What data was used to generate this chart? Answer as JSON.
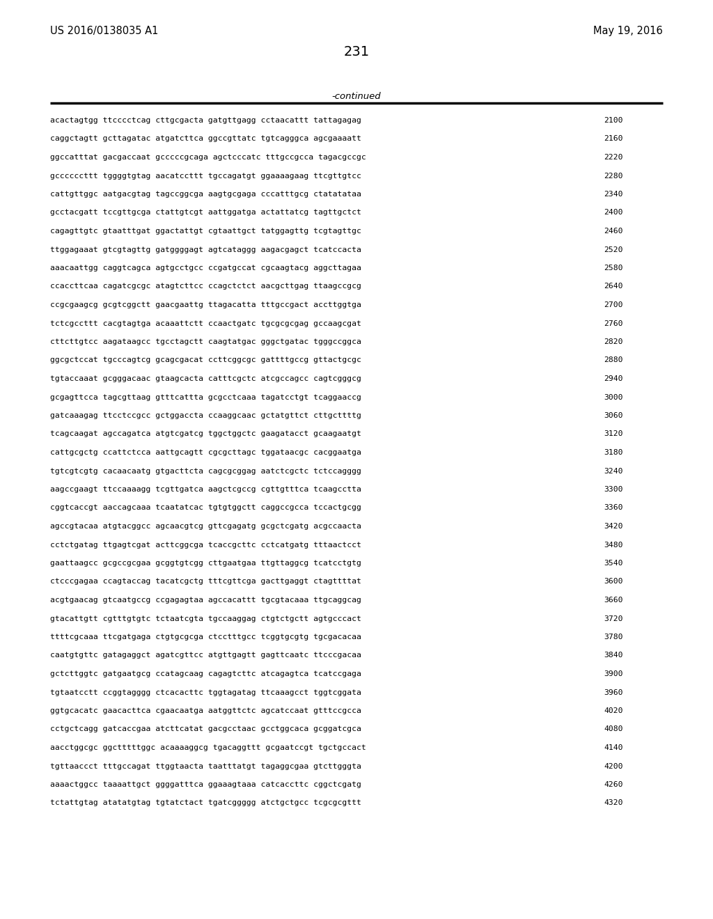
{
  "page_number": "231",
  "patent_number": "US 2016/0138035 A1",
  "patent_date": "May 19, 2016",
  "continued_label": "-continued",
  "background_color": "#ffffff",
  "text_color": "#000000",
  "sequences": [
    [
      "acactagtgg ttcccctcag cttgcgacta gatgttgagg cctaacattt tattagagag",
      "2100"
    ],
    [
      "caggctagtt gcttagatac atgatcttca ggccgttatc tgtcagggca agcgaaaatt",
      "2160"
    ],
    [
      "ggccatttat gacgaccaat gcccccgcaga agctcccatc tttgccgcca tagacgccgc",
      "2220"
    ],
    [
      "gccccccttt tggggtgtag aacatccttt tgccagatgt ggaaaagaag ttcgttgtcc",
      "2280"
    ],
    [
      "cattgttggc aatgacgtag tagccggcga aagtgcgaga cccatttgcg ctatatataa",
      "2340"
    ],
    [
      "gcctacgatt tccgttgcga ctattgtcgt aattggatga actattatcg tagttgctct",
      "2400"
    ],
    [
      "cagagttgtc gtaatttgat ggactattgt cgtaattgct tatggagttg tcgtagttgc",
      "2460"
    ],
    [
      "ttggagaaat gtcgtagttg gatggggagt agtcataggg aagacgagct tcatccacta",
      "2520"
    ],
    [
      "aaacaattgg caggtcagca agtgcctgcc ccgatgccat cgcaagtacg aggcttagaa",
      "2580"
    ],
    [
      "ccaccttcaa cagatcgcgc atagtcttcc ccagctctct aacgcttgag ttaagccgcg",
      "2640"
    ],
    [
      "ccgcgaagcg gcgtcggctt gaacgaattg ttagacatta tttgccgact accttggtga",
      "2700"
    ],
    [
      "tctcgccttt cacgtagtga acaaattctt ccaactgatc tgcgcgcgag gccaagcgat",
      "2760"
    ],
    [
      "cttcttgtcc aagataagcc tgcctagctt caagtatgac gggctgatac tgggccggca",
      "2820"
    ],
    [
      "ggcgctccat tgcccagtcg gcagcgacat ccttcggcgc gattttgccg gttactgcgc",
      "2880"
    ],
    [
      "tgtaccaaat gcgggacaac gtaagcacta catttcgctc atcgccagcc cagtcgggcg",
      "2940"
    ],
    [
      "gcgagttcca tagcgttaag gtttcattta gcgcctcaaa tagatcctgt tcaggaaccg",
      "3000"
    ],
    [
      "gatcaaagag ttcctccgcc gctggaccta ccaaggcaac gctatgttct cttgcttttg",
      "3060"
    ],
    [
      "tcagcaagat agccagatca atgtcgatcg tggctggctc gaagatacct gcaagaatgt",
      "3120"
    ],
    [
      "cattgcgctg ccattctcca aattgcagtt cgcgcttagc tggataacgc cacggaatga",
      "3180"
    ],
    [
      "tgtcgtcgtg cacaacaatg gtgacttcta cagcgcggag aatctcgctc tctccagggg",
      "3240"
    ],
    [
      "aagccgaagt ttccaaaagg tcgttgatca aagctcgccg cgttgtttca tcaagcctta",
      "3300"
    ],
    [
      "cggtcaccgt aaccagcaaa tcaatatcac tgtgtggctt caggccgcca tccactgcgg",
      "3360"
    ],
    [
      "agccgtacaa atgtacggcc agcaacgtcg gttcgagatg gcgctcgatg acgccaacta",
      "3420"
    ],
    [
      "cctctgatag ttgagtcgat acttcggcga tcaccgcttc cctcatgatg tttaactcct",
      "3480"
    ],
    [
      "gaattaagcc gcgccgcgaa gcggtgtcgg cttgaatgaa ttgttaggcg tcatcctgtg",
      "3540"
    ],
    [
      "ctcccgagaa ccagtaccag tacatcgctg tttcgttcga gacttgaggt ctagttttat",
      "3600"
    ],
    [
      "acgtgaacag gtcaatgccg ccgagagtaa agccacattt tgcgtacaaa ttgcaggcag",
      "3660"
    ],
    [
      "gtacattgtt cgtttgtgtc tctaatcgta tgccaaggag ctgtctgctt agtgcccact",
      "3720"
    ],
    [
      "ttttcgcaaa ttcgatgaga ctgtgcgcga ctcctttgcc tcggtgcgtg tgcgacacaa",
      "3780"
    ],
    [
      "caatgtgttc gatagaggct agatcgttcc atgttgagtt gagttcaatc ttcccgacaa",
      "3840"
    ],
    [
      "gctcttggtc gatgaatgcg ccatagcaag cagagtcttc atcagagtca tcatccgaga",
      "3900"
    ],
    [
      "tgtaatcctt ccggtagggg ctcacacttc tggtagatag ttcaaagcct tggtcggata",
      "3960"
    ],
    [
      "ggtgcacatc gaacacttca cgaacaatga aatggttctc agcatccaat gtttccgcca",
      "4020"
    ],
    [
      "cctgctcagg gatcaccgaa atcttcatat gacgcctaac gcctggcaca gcggatcgca",
      "4080"
    ],
    [
      "aacctggcgc ggctttttggc acaaaaggcg tgacaggttt gcgaatccgt tgctgccact",
      "4140"
    ],
    [
      "tgttaaccct tttgccagat ttggtaacta taatttatgt tagaggcgaa gtcttgggta",
      "4200"
    ],
    [
      "aaaactggcc taaaattgct ggggatttca ggaaagtaaa catcaccttc cggctcgatg",
      "4260"
    ],
    [
      "tctattgtag atatatgtag tgtatctact tgatcggggg atctgctgcc tcgcgcgttt",
      "4320"
    ]
  ]
}
